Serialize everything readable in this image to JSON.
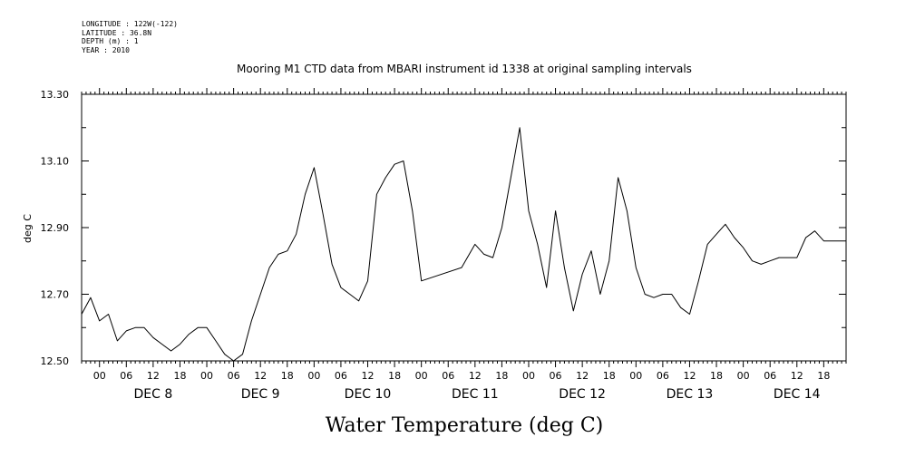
{
  "meta": {
    "longitude": "LONGITUDE : 122W(-122)",
    "latitude": "LATITUDE : 36.8N",
    "depth": "DEPTH (m) : 1",
    "year": "YEAR : 2010"
  },
  "chart_data": {
    "type": "line",
    "title": "Mooring M1 CTD data from MBARI instrument id 1338 at original sampling intervals",
    "ylabel": "deg C",
    "xlabel": "Water Temperature (deg C)",
    "ylim": [
      12.5,
      13.3
    ],
    "yticks": [
      12.5,
      12.7,
      12.9,
      13.1,
      13.3
    ],
    "ytick_labels": [
      "12.50",
      "12.70",
      "12.90",
      "13.10",
      "13.30"
    ],
    "xlim": [
      "2010-12-07 20:00",
      "2010-12-14 23:00"
    ],
    "hour_ticks": [
      "00",
      "06",
      "12",
      "18",
      "00",
      "06",
      "12",
      "18",
      "00",
      "06",
      "12",
      "18",
      "00",
      "06",
      "12",
      "18",
      "00",
      "06",
      "12",
      "18",
      "00",
      "06",
      "12",
      "18",
      "00",
      "06",
      "12",
      "18"
    ],
    "days": [
      "DEC  8",
      "DEC  9",
      "DEC 10",
      "DEC 11",
      "DEC 12",
      "DEC 13",
      "DEC 14"
    ],
    "grid": false,
    "series": [
      {
        "x": [
          "2010-12-07 20:00",
          "2010-12-07 22:00",
          "2010-12-08 00:00",
          "2010-12-08 02:00",
          "2010-12-08 04:00",
          "2010-12-08 06:00",
          "2010-12-08 08:00",
          "2010-12-08 10:00",
          "2010-12-08 12:00",
          "2010-12-08 14:00",
          "2010-12-08 16:00",
          "2010-12-08 18:00",
          "2010-12-08 20:00",
          "2010-12-08 22:00",
          "2010-12-09 00:00",
          "2010-12-09 02:00",
          "2010-12-09 04:00",
          "2010-12-09 06:00",
          "2010-12-09 08:00",
          "2010-12-09 10:00",
          "2010-12-09 12:00",
          "2010-12-09 14:00",
          "2010-12-09 16:00",
          "2010-12-09 18:00",
          "2010-12-09 20:00",
          "2010-12-09 22:00",
          "2010-12-10 00:00",
          "2010-12-10 02:00",
          "2010-12-10 04:00",
          "2010-12-10 06:00",
          "2010-12-10 08:00",
          "2010-12-10 10:00",
          "2010-12-10 12:00",
          "2010-12-10 14:00",
          "2010-12-10 16:00",
          "2010-12-10 18:00",
          "2010-12-10 20:00",
          "2010-12-10 22:00",
          "2010-12-11 00:00",
          "2010-12-11 09:00",
          "2010-12-11 12:00",
          "2010-12-11 14:00",
          "2010-12-11 16:00",
          "2010-12-11 18:00",
          "2010-12-11 20:00",
          "2010-12-11 22:00",
          "2010-12-12 00:00",
          "2010-12-12 02:00",
          "2010-12-12 04:00",
          "2010-12-12 06:00",
          "2010-12-12 08:00",
          "2010-12-12 10:00",
          "2010-12-12 12:00",
          "2010-12-12 14:00",
          "2010-12-12 16:00",
          "2010-12-12 18:00",
          "2010-12-12 20:00",
          "2010-12-12 22:00",
          "2010-12-13 00:00",
          "2010-12-13 02:00",
          "2010-12-13 04:00",
          "2010-12-13 06:00",
          "2010-12-13 08:00",
          "2010-12-13 10:00",
          "2010-12-13 12:00",
          "2010-12-13 14:00",
          "2010-12-13 16:00",
          "2010-12-13 18:00",
          "2010-12-13 20:00",
          "2010-12-13 22:00",
          "2010-12-14 00:00",
          "2010-12-14 02:00",
          "2010-12-14 04:00",
          "2010-12-14 06:00",
          "2010-12-14 08:00",
          "2010-12-14 10:00",
          "2010-12-14 12:00",
          "2010-12-14 14:00",
          "2010-12-14 16:00",
          "2010-12-14 18:00",
          "2010-12-14 20:00",
          "2010-12-14 22:00",
          "2010-12-14 23:00"
        ],
        "values": [
          12.64,
          12.69,
          12.62,
          12.64,
          12.56,
          12.59,
          12.6,
          12.6,
          12.57,
          12.55,
          12.53,
          12.55,
          12.58,
          12.6,
          12.6,
          12.56,
          12.52,
          12.5,
          12.52,
          12.62,
          12.7,
          12.78,
          12.82,
          12.83,
          12.88,
          13.0,
          13.08,
          12.94,
          12.79,
          12.72,
          12.7,
          12.68,
          12.74,
          13.0,
          13.05,
          13.09,
          13.1,
          12.95,
          12.74,
          12.78,
          12.85,
          12.82,
          12.81,
          12.9,
          13.05,
          13.2,
          12.95,
          12.85,
          12.72,
          12.95,
          12.78,
          12.65,
          12.76,
          12.83,
          12.7,
          12.8,
          13.05,
          12.95,
          12.78,
          12.7,
          12.69,
          12.7,
          12.7,
          12.66,
          12.64,
          12.74,
          12.85,
          12.88,
          12.91,
          12.87,
          12.84,
          12.8,
          12.79,
          12.8,
          12.81,
          12.81,
          12.81,
          12.87,
          12.89,
          12.86,
          12.86,
          12.86,
          12.86
        ]
      }
    ]
  }
}
